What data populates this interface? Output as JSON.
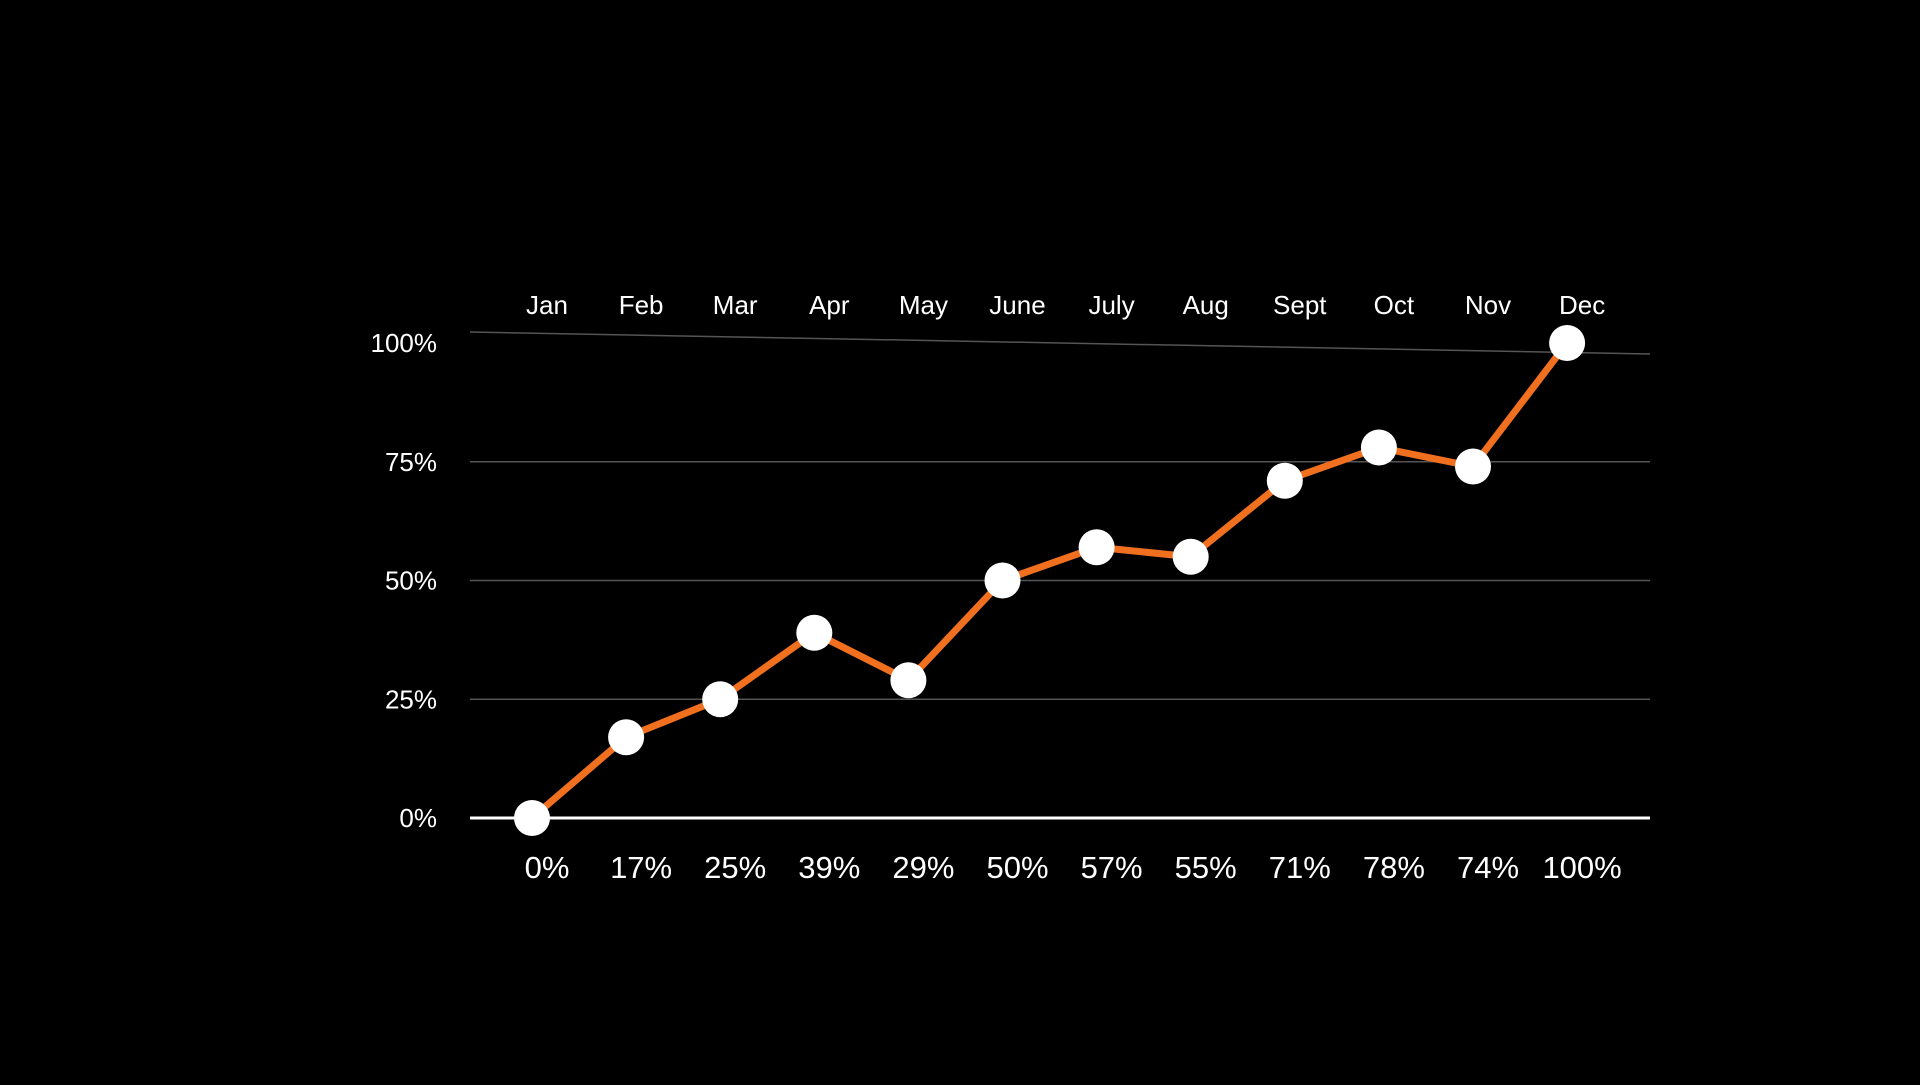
{
  "chart_data": {
    "type": "line",
    "categories": [
      "Jan",
      "Feb",
      "Mar",
      "Apr",
      "May",
      "June",
      "July",
      "Aug",
      "Sept",
      "Oct",
      "Nov",
      "Dec"
    ],
    "values": [
      0,
      17,
      25,
      39,
      29,
      50,
      57,
      55,
      71,
      78,
      74,
      100
    ],
    "value_labels": [
      "0%",
      "17%",
      "25%",
      "39%",
      "29%",
      "50%",
      "57%",
      "55%",
      "71%",
      "78%",
      "74%",
      "100%"
    ],
    "y_ticks": [
      {
        "value": 0,
        "label": "0%"
      },
      {
        "value": 25,
        "label": "25%"
      },
      {
        "value": 50,
        "label": "50%"
      },
      {
        "value": 75,
        "label": "75%"
      },
      {
        "value": 100,
        "label": "100%"
      }
    ],
    "ylim": [
      0,
      100
    ],
    "grid": true,
    "category_label_position": "top",
    "value_label_position": "bottom",
    "colors": {
      "background": "#000000",
      "line": "#f07020",
      "marker": "#ffffff",
      "gridline": "#555555",
      "baseline": "#ffffff",
      "text": "#ffffff"
    }
  }
}
